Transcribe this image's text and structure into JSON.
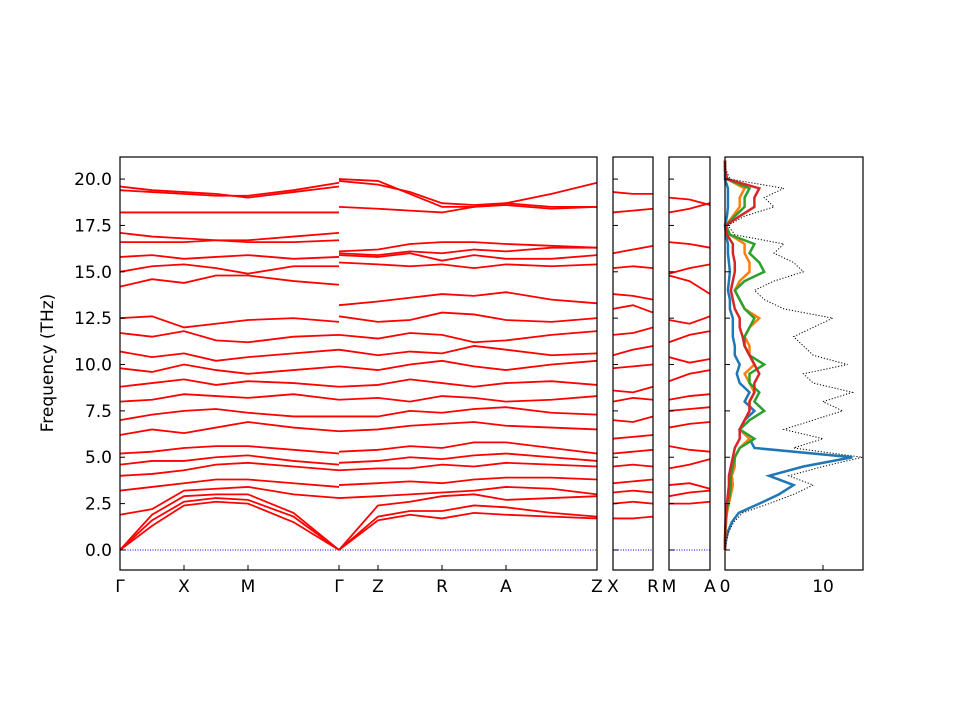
{
  "chart_data": [
    {
      "type": "line",
      "ylabel": "Frequency (THz)",
      "color": "#ff0000",
      "ylim": [
        -1.08,
        21.19
      ],
      "yticks": [
        {
          "value": 0,
          "label": "0.0"
        },
        2.5,
        {
          "value": 5,
          "label": "5.0"
        },
        7.5,
        {
          "value": 10,
          "label": "10.0"
        },
        12.5,
        {
          "value": 15,
          "label": "15.0"
        },
        17.5,
        {
          "value": 20,
          "label": "20.0"
        }
      ],
      "xlim": [
        0,
        4.77
      ],
      "xticks": [
        {
          "value": 0,
          "label": "Γ"
        },
        {
          "value": 0.64,
          "label": "X"
        },
        {
          "value": 1.28,
          "label": "M"
        },
        {
          "value": 2.19,
          "label": "Γ"
        },
        {
          "value": 2.58,
          "label": "Z"
        },
        {
          "value": 3.22,
          "label": "R"
        },
        {
          "value": 3.86,
          "label": "A"
        },
        {
          "value": 4.77,
          "label": "Z"
        }
      ],
      "hline": 0,
      "hline_color": "#0000ff",
      "x": [
        0,
        0.32,
        0.64,
        0.96,
        1.28,
        1.735,
        2.19,
        2.19,
        2.19,
        2.58,
        2.9,
        3.22,
        3.54,
        3.86,
        4.315,
        4.77
      ],
      "series": [
        {
          "values": [
            0,
            1.3,
            2.4,
            2.6,
            2.5,
            1.5,
            0,
            null,
            0,
            1.6,
            1.9,
            1.7,
            2.0,
            1.9,
            1.8,
            1.7
          ]
        },
        {
          "values": [
            0,
            1.6,
            2.6,
            2.8,
            2.7,
            1.8,
            0,
            null,
            0,
            1.8,
            2.1,
            2.1,
            2.4,
            2.3,
            2.0,
            1.8
          ]
        },
        {
          "values": [
            0,
            1.9,
            2.9,
            3.0,
            3.0,
            2.0,
            0,
            null,
            0,
            2.4,
            2.6,
            2.9,
            3.0,
            2.7,
            2.8,
            2.9
          ]
        },
        {
          "values": [
            1.9,
            2.2,
            3.2,
            3.3,
            3.4,
            3.0,
            2.8,
            null,
            2.8,
            2.9,
            3.0,
            3.1,
            3.2,
            3.4,
            3.3,
            3.0
          ]
        },
        {
          "values": [
            3.2,
            3.4,
            3.6,
            3.8,
            3.8,
            3.6,
            3.4,
            null,
            3.5,
            3.6,
            3.7,
            3.6,
            3.8,
            3.9,
            3.9,
            3.8
          ]
        },
        {
          "values": [
            4.0,
            4.1,
            4.3,
            4.6,
            4.7,
            4.5,
            4.3,
            null,
            4.3,
            4.4,
            4.4,
            4.6,
            4.5,
            4.7,
            4.6,
            4.5
          ]
        },
        {
          "values": [
            4.6,
            4.8,
            4.8,
            5.0,
            5.1,
            4.8,
            4.6,
            null,
            4.7,
            4.8,
            5.0,
            4.9,
            5.1,
            5.2,
            5.0,
            4.8
          ]
        },
        {
          "values": [
            5.2,
            5.3,
            5.5,
            5.6,
            5.6,
            5.4,
            5.2,
            null,
            5.3,
            5.4,
            5.6,
            5.5,
            5.8,
            5.8,
            5.5,
            5.2
          ]
        },
        {
          "values": [
            6.2,
            6.5,
            6.3,
            6.6,
            6.9,
            6.6,
            6.4,
            null,
            6.4,
            6.5,
            6.7,
            6.8,
            6.9,
            6.7,
            6.6,
            6.5
          ]
        },
        {
          "values": [
            7.0,
            7.3,
            7.5,
            7.6,
            7.4,
            7.2,
            7.2,
            null,
            7.2,
            7.2,
            7.5,
            7.4,
            7.6,
            7.7,
            7.4,
            7.3
          ]
        },
        {
          "values": [
            8.0,
            8.1,
            8.4,
            8.3,
            8.2,
            8.4,
            8.1,
            null,
            8.1,
            8.2,
            8.0,
            8.3,
            8.2,
            8.0,
            8.1,
            8.3
          ]
        },
        {
          "values": [
            8.8,
            9.0,
            9.2,
            8.9,
            9.1,
            9.0,
            8.8,
            null,
            8.8,
            8.9,
            9.2,
            9.0,
            8.8,
            9.0,
            9.1,
            8.9
          ]
        },
        {
          "values": [
            9.8,
            9.6,
            10.0,
            9.7,
            9.5,
            9.7,
            9.9,
            null,
            9.9,
            9.7,
            10.0,
            10.2,
            9.9,
            9.7,
            10.0,
            10.2
          ]
        },
        {
          "values": [
            10.7,
            10.4,
            10.6,
            10.2,
            10.4,
            10.6,
            10.8,
            null,
            10.8,
            10.5,
            10.7,
            10.6,
            11.0,
            10.8,
            10.5,
            10.6
          ]
        },
        {
          "values": [
            11.7,
            11.5,
            11.8,
            11.3,
            11.2,
            11.5,
            11.6,
            null,
            11.6,
            11.4,
            11.7,
            11.6,
            11.2,
            11.3,
            11.6,
            11.8
          ]
        },
        {
          "values": [
            12.5,
            12.6,
            12.0,
            12.2,
            12.4,
            12.5,
            12.3,
            null,
            12.6,
            12.3,
            12.4,
            12.8,
            12.7,
            12.4,
            12.3,
            12.5
          ]
        },
        {
          "values": [
            14.2,
            14.6,
            14.4,
            14.8,
            14.8,
            14.5,
            14.3,
            null,
            13.2,
            13.4,
            13.6,
            13.8,
            13.7,
            13.9,
            13.5,
            13.3
          ]
        },
        {
          "values": [
            15.0,
            15.3,
            15.4,
            15.2,
            14.9,
            15.3,
            15.3,
            null,
            15.5,
            15.4,
            15.3,
            15.4,
            15.2,
            15.4,
            15.3,
            15.4
          ]
        },
        {
          "values": [
            15.8,
            15.9,
            15.7,
            15.8,
            15.9,
            15.7,
            15.8,
            null,
            16.0,
            15.9,
            16.1,
            16.0,
            16.2,
            16.1,
            16.3,
            16.3
          ]
        },
        {
          "values": [
            16.6,
            16.6,
            16.6,
            16.7,
            16.6,
            16.6,
            16.7,
            null,
            16.1,
            16.2,
            16.5,
            16.6,
            16.6,
            16.5,
            16.4,
            16.3
          ]
        },
        {
          "values": [
            17.1,
            16.9,
            16.8,
            16.7,
            16.7,
            16.9,
            17.1,
            null,
            15.9,
            15.8,
            16.0,
            15.6,
            15.9,
            15.7,
            15.7,
            15.9
          ]
        },
        {
          "values": [
            18.2,
            18.2,
            18.2,
            18.2,
            18.2,
            18.2,
            18.2,
            null,
            18.5,
            18.4,
            18.3,
            18.2,
            18.5,
            18.7,
            18.5,
            18.5
          ]
        },
        {
          "values": [
            19.6,
            19.4,
            19.3,
            19.2,
            19.0,
            19.3,
            19.6,
            null,
            19.9,
            19.7,
            19.3,
            18.7,
            18.6,
            18.7,
            19.2,
            19.8
          ]
        },
        {
          "values": [
            19.4,
            19.3,
            19.2,
            19.1,
            19.1,
            19.4,
            19.8,
            null,
            20.0,
            19.9,
            19.2,
            18.5,
            18.5,
            18.6,
            18.4,
            18.5
          ]
        }
      ]
    },
    {
      "type": "line",
      "color": "#ff0000",
      "ylim": [
        -1.08,
        21.19
      ],
      "xlim": [
        0,
        0.4
      ],
      "xticks": [
        {
          "value": 0,
          "label": "X"
        },
        {
          "value": 0.4,
          "label": "R"
        }
      ],
      "hline": 0,
      "hline_color": "#0000ff",
      "x": [
        0,
        0.2,
        0.4
      ],
      "series": [
        {
          "values": [
            1.7,
            1.7,
            1.8
          ]
        },
        {
          "values": [
            2.5,
            2.6,
            2.5
          ]
        },
        {
          "values": [
            3.1,
            3.2,
            3.1
          ]
        },
        {
          "values": [
            3.6,
            3.7,
            3.8
          ]
        },
        {
          "values": [
            4.5,
            4.6,
            4.5
          ]
        },
        {
          "values": [
            5.2,
            5.3,
            5.4
          ]
        },
        {
          "values": [
            6.0,
            6.1,
            6.2
          ]
        },
        {
          "values": [
            7.0,
            6.9,
            7.2
          ]
        },
        {
          "values": [
            8.0,
            8.2,
            8.1
          ]
        },
        {
          "values": [
            8.6,
            8.5,
            8.8
          ]
        },
        {
          "values": [
            9.8,
            9.9,
            10.0
          ]
        },
        {
          "values": [
            10.5,
            10.8,
            11.0
          ]
        },
        {
          "values": [
            11.6,
            11.7,
            12.0
          ]
        },
        {
          "values": [
            13.0,
            13.2,
            12.8
          ]
        },
        {
          "values": [
            13.8,
            13.7,
            13.5
          ]
        },
        {
          "values": [
            15.2,
            15.3,
            15.2
          ]
        },
        {
          "values": [
            16.0,
            16.2,
            16.4
          ]
        },
        {
          "values": [
            18.2,
            18.3,
            18.4
          ]
        },
        {
          "values": [
            19.3,
            19.2,
            19.2
          ]
        }
      ]
    },
    {
      "type": "line",
      "color": "#ff0000",
      "ylim": [
        -1.08,
        21.19
      ],
      "xlim": [
        0,
        0.41
      ],
      "xticks": [
        {
          "value": 0,
          "label": "M"
        },
        {
          "value": 0.41,
          "label": "A"
        }
      ],
      "hline": 0,
      "hline_color": "#0000ff",
      "x": [
        0,
        0.205,
        0.41
      ],
      "series": [
        {
          "values": [
            2.5,
            2.5,
            2.6
          ]
        },
        {
          "values": [
            2.9,
            3.1,
            3.2
          ]
        },
        {
          "values": [
            3.5,
            3.6,
            3.3
          ]
        },
        {
          "values": [
            4.4,
            4.6,
            4.9
          ]
        },
        {
          "values": [
            5.6,
            5.4,
            5.3
          ]
        },
        {
          "values": [
            6.6,
            6.8,
            6.9
          ]
        },
        {
          "values": [
            7.5,
            7.6,
            7.7
          ]
        },
        {
          "values": [
            8.1,
            8.3,
            8.4
          ]
        },
        {
          "values": [
            9.1,
            9.5,
            9.7
          ]
        },
        {
          "values": [
            10.4,
            10.1,
            10.3
          ]
        },
        {
          "values": [
            11.2,
            11.6,
            11.8
          ]
        },
        {
          "values": [
            12.4,
            12.2,
            12.6
          ]
        },
        {
          "values": [
            14.8,
            14.5,
            13.8
          ]
        },
        {
          "values": [
            14.9,
            15.2,
            15.4
          ]
        },
        {
          "values": [
            16.6,
            16.5,
            16.3
          ]
        },
        {
          "values": [
            18.2,
            18.4,
            18.7
          ]
        },
        {
          "values": [
            19.0,
            18.9,
            18.6
          ]
        }
      ]
    },
    {
      "type": "dos",
      "ylim": [
        -1.08,
        21.19
      ],
      "xlim": [
        0,
        14.08
      ],
      "xticks": [
        0,
        10
      ],
      "frequencies": [
        0,
        0.5,
        1,
        1.5,
        2,
        2.5,
        3,
        3.5,
        4,
        4.5,
        5,
        5.5,
        6,
        6.5,
        7,
        7.5,
        8,
        8.5,
        9,
        9.5,
        10,
        10.5,
        11,
        11.5,
        12,
        12.5,
        13,
        13.5,
        14,
        14.5,
        15,
        15.5,
        16,
        16.5,
        17,
        17.5,
        18,
        18.5,
        19,
        19.5,
        20,
        20.5,
        21
      ],
      "series": [
        {
          "color": "#1f77b4",
          "values": [
            0,
            0.1,
            0.3,
            0.7,
            1.4,
            3.5,
            5.5,
            7,
            4.5,
            8,
            13,
            3,
            2.5,
            1.5,
            2,
            3,
            2,
            2.5,
            1.5,
            1.2,
            1.5,
            1,
            1,
            0.8,
            0.8,
            0.8,
            0.5,
            0.5,
            0.3,
            0.4,
            0.5,
            0.4,
            0.3,
            0.3,
            0.1,
            0,
            0.2,
            0.3,
            0.3,
            0.3,
            0,
            0,
            0
          ]
        },
        {
          "color": "#ff7f0e",
          "values": [
            0,
            0,
            0.05,
            0.1,
            0.2,
            0.4,
            0.6,
            0.8,
            0.7,
            1,
            1,
            1.5,
            2.5,
            1.5,
            2,
            2.5,
            2.5,
            3,
            2.5,
            2,
            3,
            2.5,
            2.5,
            2,
            2.5,
            3.5,
            2,
            1.5,
            1,
            1.5,
            2.5,
            2.5,
            2,
            2,
            0.5,
            0.1,
            0.8,
            1.5,
            1.5,
            2,
            0.2,
            0,
            0
          ]
        },
        {
          "color": "#2ca02c",
          "values": [
            0,
            0,
            0.03,
            0.1,
            0.15,
            0.3,
            0.5,
            0.6,
            0.6,
            0.8,
            1,
            1.5,
            3,
            1.5,
            2.5,
            4,
            3,
            3.5,
            2.5,
            2.5,
            4,
            2.5,
            2,
            2,
            2.5,
            3,
            2,
            1.5,
            1,
            2,
            4,
            3.5,
            2.5,
            3,
            0.5,
            0.1,
            1,
            2,
            2,
            2.5,
            0.2,
            0,
            0
          ]
        },
        {
          "color": "#d62728",
          "values": [
            0,
            0,
            0.02,
            0.05,
            0.1,
            0.2,
            0.3,
            0.4,
            0.4,
            0.6,
            0.8,
            1,
            1.5,
            1.5,
            2,
            2.5,
            2.5,
            3,
            3,
            3.5,
            3,
            2.5,
            2,
            1.8,
            1.5,
            1.5,
            1,
            0.8,
            0.6,
            0.8,
            1,
            1,
            0.8,
            0.8,
            0.2,
            0.05,
            1.5,
            3,
            3,
            3.5,
            0.2,
            0,
            0
          ]
        },
        {
          "color": "#000000",
          "style": "dotted",
          "values": [
            0,
            0.1,
            0.4,
            0.9,
            1.8,
            4.5,
            7,
            9,
            6.5,
            10,
            14,
            7,
            10,
            6,
            9,
            12,
            10,
            13,
            9,
            8,
            12.5,
            9,
            8,
            7,
            9,
            11,
            6,
            4,
            3,
            5,
            8,
            7,
            5,
            6,
            1,
            0.3,
            2,
            5,
            4,
            6,
            0.5,
            0.1,
            0
          ]
        }
      ]
    }
  ]
}
